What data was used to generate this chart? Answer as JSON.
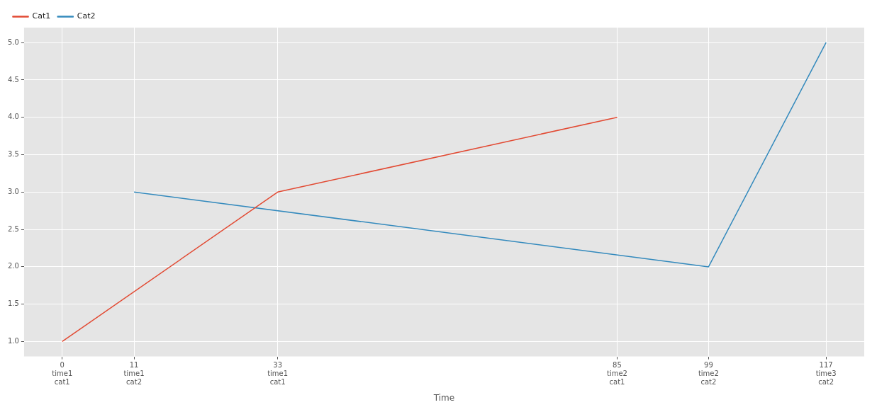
{
  "chart_data": {
    "type": "line",
    "xlabel": "Time",
    "xlim": [
      -5.85,
      122.85
    ],
    "xticks": [
      0,
      11,
      33,
      85,
      99,
      117
    ],
    "annotations": [
      "time1\ncat1",
      "time1\ncat2",
      "time1\ncat1",
      "time2\ncat1",
      "time2\ncat2",
      "time3\ncat2"
    ],
    "ylim": [
      0.8,
      5.2
    ],
    "yticks": [
      {
        "value": 1,
        "label": "1.0"
      },
      {
        "value": 1.5,
        "label": "1.5"
      },
      {
        "value": 2,
        "label": "2.0"
      },
      {
        "value": 2.5,
        "label": "2.5"
      },
      {
        "value": 3,
        "label": "3.0"
      },
      {
        "value": 3.5,
        "label": "3.5"
      },
      {
        "value": 4,
        "label": "4.0"
      },
      {
        "value": 4.5,
        "label": "4.5"
      },
      {
        "value": 5,
        "label": "5.0"
      }
    ],
    "series": [
      {
        "name": "Cat1",
        "color": "#e24a33",
        "x": [
          0,
          33,
          85
        ],
        "values": [
          1,
          3,
          4
        ]
      },
      {
        "name": "Cat2",
        "color": "#348abd",
        "x": [
          11,
          99,
          117
        ],
        "values": [
          3,
          2,
          5
        ]
      }
    ],
    "grid": true,
    "legend": "top left",
    "marker": "none",
    "line_style": "solid"
  }
}
